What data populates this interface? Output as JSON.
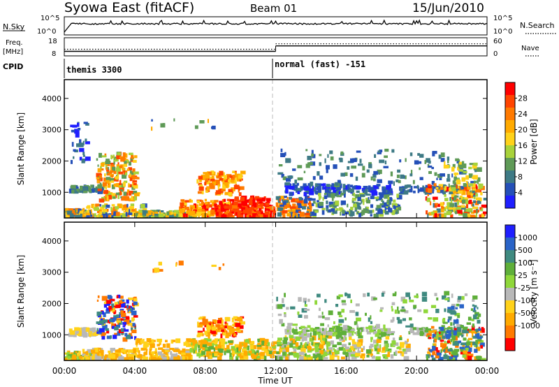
{
  "header": {
    "station": "Syowa East (fitACF)",
    "beam": "Beam 01",
    "date": "15/Jun/2010"
  },
  "chart_data": [
    {
      "type": "line",
      "name": "noise-panel",
      "left_label": "N.Sky",
      "right_label": "N.Search",
      "left_ticks": [
        "10^5",
        "10^0"
      ],
      "right_ticks": [
        "10^5",
        "10^0"
      ],
      "series": [
        {
          "name": "N.Sky",
          "style": "solid"
        },
        {
          "name": "N.Search",
          "style": "dotted"
        }
      ]
    },
    {
      "type": "line",
      "name": "frequency-panel",
      "left_label_lines": [
        "Freq.",
        "[MHz]"
      ],
      "right_label": "Nave",
      "left_ticks": [
        "18",
        "8"
      ],
      "right_ticks": [
        "60",
        "0"
      ],
      "ylim_left": [
        8,
        18
      ],
      "ylim_right": [
        0,
        60
      ],
      "freq_steps": [
        {
          "x": [
            0,
            12
          ],
          "y": 10.5
        },
        {
          "x": [
            12,
            24
          ],
          "y": 13.5
        }
      ],
      "nave_steps": [
        {
          "x": [
            0,
            12
          ],
          "y": 22
        },
        {
          "x": [
            12,
            24
          ],
          "y": 40
        }
      ]
    },
    {
      "type": "table",
      "name": "cpid-panel",
      "label": "CPID",
      "modes": [
        {
          "start": 0,
          "text": "themis 3300"
        },
        {
          "start": 12,
          "text": "normal (fast) -151"
        }
      ]
    },
    {
      "type": "heatmap",
      "name": "power",
      "ylabel": "Slant Range [km]",
      "yticks": [
        1000,
        2000,
        3000,
        4000
      ],
      "ylim": [
        180,
        4600
      ],
      "xlim": [
        0,
        24
      ],
      "colorbar_label": "Power [dB]",
      "colorbar_ticks": [
        "4",
        "8",
        "12",
        "16",
        "20",
        "24",
        "28"
      ],
      "colorbar_colors": [
        "#1f1fff",
        "#2550b8",
        "#3e7a85",
        "#5f9a57",
        "#a8d23a",
        "#ffd21a",
        "#ffaa00",
        "#ff7a00",
        "#ff4400",
        "#ff0000"
      ],
      "clusters": [
        {
          "t": [
            0.0,
            1.5
          ],
          "r": [
            200,
            500
          ],
          "n": 140,
          "c": [
            1,
            2,
            3,
            5,
            6,
            7
          ]
        },
        {
          "t": [
            0.2,
            2.0
          ],
          "r": [
            1050,
            1250
          ],
          "n": 60,
          "c": [
            1,
            2,
            3
          ]
        },
        {
          "t": [
            0.3,
            1.2
          ],
          "r": [
            2000,
            3300
          ],
          "n": 30,
          "c": [
            0,
            1,
            2
          ]
        },
        {
          "t": [
            1.8,
            4.0
          ],
          "r": [
            800,
            2300
          ],
          "n": 200,
          "c": [
            3,
            4,
            5,
            6,
            7,
            8
          ]
        },
        {
          "t": [
            1.2,
            4.5
          ],
          "r": [
            250,
            650
          ],
          "n": 110,
          "c": [
            4,
            5,
            6,
            7,
            1
          ]
        },
        {
          "t": [
            4.0,
            7.5
          ],
          "r": [
            200,
            450
          ],
          "n": 120,
          "c": [
            2,
            3,
            4,
            5,
            6
          ]
        },
        {
          "t": [
            6.5,
            9.5
          ],
          "r": [
            300,
            800
          ],
          "n": 130,
          "c": [
            5,
            6,
            7,
            8,
            9
          ]
        },
        {
          "t": [
            7.5,
            10.0
          ],
          "r": [
            1000,
            1700
          ],
          "n": 110,
          "c": [
            5,
            6,
            7,
            8
          ]
        },
        {
          "t": [
            8.5,
            11.8
          ],
          "r": [
            200,
            650
          ],
          "n": 180,
          "c": [
            7,
            8,
            9,
            9,
            8
          ]
        },
        {
          "t": [
            9.5,
            11.5
          ],
          "r": [
            650,
            900
          ],
          "n": 60,
          "c": [
            8,
            9
          ]
        },
        {
          "t": [
            4.0,
            9.0
          ],
          "r": [
            3100,
            3400
          ],
          "n": 10,
          "c": [
            1,
            3,
            6
          ]
        },
        {
          "t": [
            12.0,
            14.0
          ],
          "r": [
            250,
            900
          ],
          "n": 110,
          "c": [
            1,
            2,
            6,
            7,
            8
          ]
        },
        {
          "t": [
            12.5,
            18.5
          ],
          "r": [
            1000,
            1300
          ],
          "n": 150,
          "c": [
            0,
            1,
            2
          ]
        },
        {
          "t": [
            14.0,
            19.0
          ],
          "r": [
            300,
            1000
          ],
          "n": 170,
          "c": [
            1,
            2,
            3,
            4
          ]
        },
        {
          "t": [
            12.0,
            23.5
          ],
          "r": [
            1300,
            2400
          ],
          "n": 150,
          "c": [
            1,
            2,
            3
          ]
        },
        {
          "t": [
            19.0,
            22.5
          ],
          "r": [
            1050,
            1250
          ],
          "n": 80,
          "c": [
            1,
            2
          ]
        },
        {
          "t": [
            20.5,
            23.8
          ],
          "r": [
            200,
            1300
          ],
          "n": 160,
          "c": [
            2,
            4,
            5,
            6,
            7,
            8,
            9
          ]
        },
        {
          "t": [
            21.5,
            23.5
          ],
          "r": [
            300,
            2000
          ],
          "n": 70,
          "c": [
            3,
            4,
            5
          ]
        }
      ]
    },
    {
      "type": "heatmap",
      "name": "velocity",
      "ylabel": "Slant Range [km]",
      "yticks": [
        1000,
        2000,
        3000,
        4000
      ],
      "ylim": [
        180,
        4600
      ],
      "xlim": [
        0,
        24
      ],
      "xticks": [
        "00:00",
        "04:00",
        "08:00",
        "12:00",
        "16:00",
        "20:00",
        "00:00"
      ],
      "xlabel": "Time UT",
      "colorbar_label": "Velocity [m s⁻¹]",
      "colorbar_ticks": [
        "1000",
        "500",
        "100",
        "25",
        "-25",
        "-100",
        "-500",
        "-1000"
      ],
      "colorbar_colors": [
        "#1f1fff",
        "#2a64c8",
        "#3f8a80",
        "#5faf3a",
        "#8fd73a",
        "#b8b8b8",
        "#ffd21a",
        "#ffaa00",
        "#ff7a00",
        "#ff0000"
      ],
      "clusters": [
        {
          "t": [
            0.0,
            1.8
          ],
          "r": [
            200,
            500
          ],
          "n": 120,
          "c": [
            6,
            7,
            4,
            3
          ]
        },
        {
          "t": [
            0.2,
            2.0
          ],
          "r": [
            1050,
            1250
          ],
          "n": 55,
          "c": [
            5,
            6
          ]
        },
        {
          "t": [
            1.8,
            4.0
          ],
          "r": [
            900,
            2300
          ],
          "n": 170,
          "c": [
            0,
            1,
            2,
            8,
            9,
            6
          ]
        },
        {
          "t": [
            1.0,
            7.0
          ],
          "r": [
            200,
            600
          ],
          "n": 220,
          "c": [
            6,
            7,
            7,
            5
          ]
        },
        {
          "t": [
            4.0,
            8.0
          ],
          "r": [
            700,
            900
          ],
          "n": 50,
          "c": [
            6,
            7
          ]
        },
        {
          "t": [
            7.5,
            10.0
          ],
          "r": [
            1000,
            1600
          ],
          "n": 110,
          "c": [
            7,
            8,
            9,
            6
          ]
        },
        {
          "t": [
            7.0,
            11.8
          ],
          "r": [
            300,
            900
          ],
          "n": 220,
          "c": [
            6,
            7,
            7,
            4,
            3
          ]
        },
        {
          "t": [
            4.0,
            9.0
          ],
          "r": [
            3100,
            3400
          ],
          "n": 10,
          "c": [
            6,
            8
          ]
        },
        {
          "t": [
            12.0,
            15.0
          ],
          "r": [
            250,
            1000
          ],
          "n": 130,
          "c": [
            3,
            4,
            5,
            6,
            7
          ]
        },
        {
          "t": [
            12.5,
            18.5
          ],
          "r": [
            1050,
            1300
          ],
          "n": 140,
          "c": [
            5,
            3,
            4
          ]
        },
        {
          "t": [
            14.0,
            19.5
          ],
          "r": [
            300,
            1000
          ],
          "n": 170,
          "c": [
            3,
            4,
            5,
            6,
            7
          ]
        },
        {
          "t": [
            12.0,
            23.5
          ],
          "r": [
            1300,
            2400
          ],
          "n": 140,
          "c": [
            3,
            4,
            5,
            2
          ]
        },
        {
          "t": [
            19.5,
            22.5
          ],
          "r": [
            1050,
            1250
          ],
          "n": 70,
          "c": [
            5,
            3
          ]
        },
        {
          "t": [
            20.5,
            23.8
          ],
          "r": [
            200,
            1300
          ],
          "n": 170,
          "c": [
            1,
            2,
            3,
            4,
            7,
            8,
            9
          ]
        },
        {
          "t": [
            21.5,
            23.5
          ],
          "r": [
            300,
            2000
          ],
          "n": 70,
          "c": [
            2,
            3,
            1
          ]
        }
      ]
    }
  ]
}
